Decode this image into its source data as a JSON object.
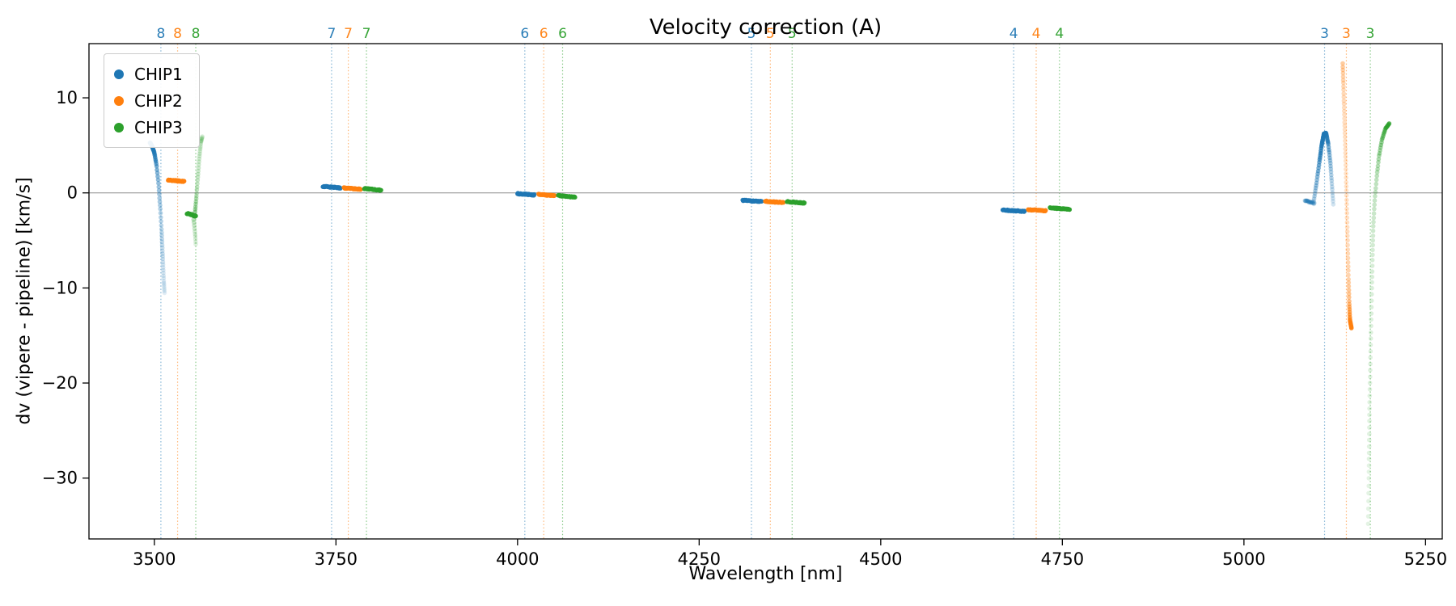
{
  "chart_data": {
    "type": "scatter",
    "title": "Velocity correction (A)",
    "xlabel": "Wavelength [nm]",
    "ylabel": "dv (vipere - pipeline) [km/s]",
    "xlim": [
      3410,
      5273
    ],
    "ylim": [
      -36.4,
      15.7
    ],
    "xticks": [
      3500,
      3750,
      4000,
      4250,
      4500,
      4750,
      5000,
      5250
    ],
    "xtick_labels": [
      "3500",
      "3750",
      "4000",
      "4250",
      "4500",
      "4750",
      "5000",
      "5250"
    ],
    "yticks": [
      10,
      0,
      -10,
      -20,
      -30
    ],
    "ytick_labels": [
      "10",
      "0",
      "−10",
      "−20",
      "−30"
    ],
    "zero_line": 0,
    "grid": false,
    "legend_position": "upper-left",
    "colors": {
      "CHIP1": "#1f77b4",
      "CHIP2": "#ff7f0e",
      "CHIP3": "#2ca02c"
    },
    "legend": [
      {
        "label": "CHIP1",
        "color": "#1f77b4"
      },
      {
        "label": "CHIP2",
        "color": "#ff7f0e"
      },
      {
        "label": "CHIP3",
        "color": "#2ca02c"
      }
    ],
    "order_lines": [
      {
        "order": "8",
        "chip": "CHIP1",
        "wavelength": 3509
      },
      {
        "order": "8",
        "chip": "CHIP2",
        "wavelength": 3532
      },
      {
        "order": "8",
        "chip": "CHIP3",
        "wavelength": 3557
      },
      {
        "order": "7",
        "chip": "CHIP1",
        "wavelength": 3744
      },
      {
        "order": "7",
        "chip": "CHIP2",
        "wavelength": 3767
      },
      {
        "order": "7",
        "chip": "CHIP3",
        "wavelength": 3792
      },
      {
        "order": "6",
        "chip": "CHIP1",
        "wavelength": 4010
      },
      {
        "order": "6",
        "chip": "CHIP2",
        "wavelength": 4036
      },
      {
        "order": "6",
        "chip": "CHIP3",
        "wavelength": 4062
      },
      {
        "order": "5",
        "chip": "CHIP1",
        "wavelength": 4322
      },
      {
        "order": "5",
        "chip": "CHIP2",
        "wavelength": 4348
      },
      {
        "order": "5",
        "chip": "CHIP3",
        "wavelength": 4378
      },
      {
        "order": "4",
        "chip": "CHIP1",
        "wavelength": 4683
      },
      {
        "order": "4",
        "chip": "CHIP2",
        "wavelength": 4714
      },
      {
        "order": "4",
        "chip": "CHIP3",
        "wavelength": 4746
      },
      {
        "order": "3",
        "chip": "CHIP1",
        "wavelength": 5111
      },
      {
        "order": "3",
        "chip": "CHIP2",
        "wavelength": 5141
      },
      {
        "order": "3",
        "chip": "CHIP3",
        "wavelength": 5174
      }
    ],
    "series": [
      {
        "chip": "CHIP1",
        "order": "8",
        "kind": "curve",
        "n": 60,
        "size": 2.8,
        "path": [
          [
            3494,
            5.3
          ],
          [
            3497,
            4.9
          ],
          [
            3500,
            4.2
          ],
          [
            3503,
            2.9
          ],
          [
            3506,
            0.8
          ],
          [
            3508,
            -1.5
          ],
          [
            3510,
            -4.0
          ],
          [
            3511,
            -5.9
          ],
          [
            3512,
            -7.6
          ],
          [
            3513,
            -9.3
          ],
          [
            3514,
            -10.5
          ]
        ],
        "alphas": [
          0.95,
          0.9,
          0.8,
          0.6,
          0.45,
          0.35,
          0.3,
          0.25,
          0.2,
          0.16,
          0.13
        ]
      },
      {
        "chip": "CHIP2",
        "order": "8",
        "kind": "segment",
        "n": 42,
        "size": 2.8,
        "x1": 3519,
        "x2": 3541,
        "y1": 1.35,
        "y2": 1.2,
        "alpha1": 0.95,
        "alpha2": 0.95,
        "jitter": 0.1
      },
      {
        "chip": "CHIP3",
        "order": "8",
        "kind": "segment",
        "n": 30,
        "size": 2.8,
        "x1": 3545,
        "x2": 3557,
        "y1": -2.15,
        "y2": -2.45,
        "alpha1": 0.9,
        "alpha2": 0.9,
        "jitter": 0.12
      },
      {
        "chip": "CHIP3",
        "order": "8",
        "kind": "curve",
        "n": 32,
        "size": 2.8,
        "path": [
          [
            3556,
            -2.0
          ],
          [
            3558,
            -0.3
          ],
          [
            3560,
            1.8
          ],
          [
            3562,
            3.8
          ],
          [
            3564,
            5.3
          ],
          [
            3566,
            5.9
          ]
        ],
        "alphas": [
          0.45,
          0.3,
          0.25,
          0.22,
          0.2,
          0.18
        ]
      },
      {
        "chip": "CHIP3",
        "order": "8",
        "kind": "curve",
        "n": 10,
        "size": 2.8,
        "path": [
          [
            3554,
            -2.8
          ],
          [
            3556,
            -4.2
          ],
          [
            3557,
            -5.4
          ]
        ],
        "alphas": [
          0.3,
          0.2,
          0.14
        ]
      },
      {
        "chip": "CHIP1",
        "order": "7",
        "kind": "segment",
        "n": 44,
        "size": 2.8,
        "x1": 3732,
        "x2": 3756,
        "y1": 0.68,
        "y2": 0.52,
        "alpha1": 0.9,
        "alpha2": 0.9,
        "jitter": 0.1
      },
      {
        "chip": "CHIP2",
        "order": "7",
        "kind": "segment",
        "n": 42,
        "size": 2.8,
        "x1": 3761,
        "x2": 3784,
        "y1": 0.52,
        "y2": 0.38,
        "alpha1": 0.9,
        "alpha2": 0.9,
        "jitter": 0.1
      },
      {
        "chip": "CHIP3",
        "order": "7",
        "kind": "segment",
        "n": 42,
        "size": 2.8,
        "x1": 3789,
        "x2": 3812,
        "y1": 0.46,
        "y2": 0.28,
        "alpha1": 0.85,
        "alpha2": 0.95,
        "jitter": 0.1
      },
      {
        "chip": "CHIP1",
        "order": "6",
        "kind": "segment",
        "n": 42,
        "size": 2.8,
        "x1": 4000,
        "x2": 4023,
        "y1": -0.08,
        "y2": -0.22,
        "alpha1": 0.9,
        "alpha2": 0.9,
        "jitter": 0.1
      },
      {
        "chip": "CHIP2",
        "order": "6",
        "kind": "segment",
        "n": 40,
        "size": 2.8,
        "x1": 4029,
        "x2": 4051,
        "y1": -0.15,
        "y2": -0.3,
        "alpha1": 0.9,
        "alpha2": 0.9,
        "jitter": 0.1
      },
      {
        "chip": "CHIP3",
        "order": "6",
        "kind": "segment",
        "n": 40,
        "size": 2.8,
        "x1": 4056,
        "x2": 4079,
        "y1": -0.28,
        "y2": -0.46,
        "alpha1": 0.85,
        "alpha2": 0.95,
        "jitter": 0.1
      },
      {
        "chip": "CHIP1",
        "order": "5",
        "kind": "segment",
        "n": 46,
        "size": 2.8,
        "x1": 4310,
        "x2": 4336,
        "y1": -0.78,
        "y2": -0.92,
        "alpha1": 0.9,
        "alpha2": 0.9,
        "jitter": 0.1
      },
      {
        "chip": "CHIP2",
        "order": "5",
        "kind": "segment",
        "n": 44,
        "size": 2.8,
        "x1": 4341,
        "x2": 4366,
        "y1": -0.88,
        "y2": -1.02,
        "alpha1": 0.95,
        "alpha2": 0.95,
        "jitter": 0.1
      },
      {
        "chip": "CHIP3",
        "order": "5",
        "kind": "segment",
        "n": 42,
        "size": 2.8,
        "x1": 4371,
        "x2": 4395,
        "y1": -0.92,
        "y2": -1.06,
        "alpha1": 0.9,
        "alpha2": 0.9,
        "jitter": 0.1
      },
      {
        "chip": "CHIP1",
        "order": "4",
        "kind": "segment",
        "n": 52,
        "size": 2.8,
        "x1": 4668,
        "x2": 4698,
        "y1": -1.8,
        "y2": -1.94,
        "alpha1": 0.95,
        "alpha2": 0.95,
        "jitter": 0.1
      },
      {
        "chip": "CHIP2",
        "order": "4",
        "kind": "segment",
        "n": 44,
        "size": 2.8,
        "x1": 4703,
        "x2": 4727,
        "y1": -1.76,
        "y2": -1.88,
        "alpha1": 0.9,
        "alpha2": 0.9,
        "jitter": 0.1
      },
      {
        "chip": "CHIP3",
        "order": "4",
        "kind": "segment",
        "n": 46,
        "size": 2.8,
        "x1": 4733,
        "x2": 4760,
        "y1": -1.58,
        "y2": -1.72,
        "alpha1": 0.9,
        "alpha2": 0.9,
        "jitter": 0.1
      },
      {
        "chip": "CHIP1",
        "order": "3",
        "kind": "segment",
        "n": 20,
        "size": 2.8,
        "x1": 5084,
        "x2": 5097,
        "y1": -0.85,
        "y2": -1.1,
        "alpha1": 0.3,
        "alpha2": 0.25,
        "jitter": 0.15
      },
      {
        "chip": "CHIP1",
        "order": "3",
        "kind": "curve",
        "n": 65,
        "size": 2.8,
        "path": [
          [
            5096,
            -0.9
          ],
          [
            5100,
            1.1
          ],
          [
            5104,
            3.3
          ],
          [
            5107,
            5.0
          ],
          [
            5110,
            6.2
          ],
          [
            5113,
            6.3
          ],
          [
            5116,
            5.2
          ],
          [
            5119,
            3.2
          ],
          [
            5121,
            1.0
          ],
          [
            5123,
            -1.2
          ]
        ],
        "alphas": [
          0.3,
          0.45,
          0.65,
          0.85,
          0.95,
          0.85,
          0.6,
          0.4,
          0.28,
          0.2
        ]
      },
      {
        "chip": "CHIP2",
        "order": "3",
        "kind": "curve",
        "n": 75,
        "size": 2.8,
        "path": [
          [
            5136,
            13.6
          ],
          [
            5137,
            11.3
          ],
          [
            5138,
            8.8
          ],
          [
            5139,
            6.2
          ],
          [
            5140,
            3.4
          ],
          [
            5141,
            0.4
          ],
          [
            5142,
            -2.8
          ],
          [
            5143,
            -6.0
          ],
          [
            5144,
            -9.0
          ],
          [
            5145,
            -11.6
          ],
          [
            5146,
            -13.4
          ],
          [
            5148,
            -14.2
          ]
        ],
        "alphas": [
          0.4,
          0.3,
          0.26,
          0.24,
          0.22,
          0.22,
          0.24,
          0.28,
          0.34,
          0.5,
          0.8,
          0.95
        ]
      },
      {
        "chip": "CHIP3",
        "order": "3",
        "kind": "curve",
        "n": 85,
        "size": 2.8,
        "path": [
          [
            5171,
            -34.8
          ],
          [
            5172,
            -30
          ],
          [
            5172.5,
            -26
          ],
          [
            5173,
            -22
          ],
          [
            5174,
            -18
          ],
          [
            5175,
            -14
          ],
          [
            5176,
            -10
          ],
          [
            5177,
            -6.5
          ],
          [
            5178,
            -3.5
          ],
          [
            5180,
            -0.8
          ],
          [
            5183,
            1.8
          ],
          [
            5186,
            3.9
          ],
          [
            5190,
            5.6
          ],
          [
            5195,
            6.8
          ],
          [
            5200,
            7.3
          ]
        ],
        "alphas": [
          0.13,
          0.13,
          0.14,
          0.14,
          0.15,
          0.16,
          0.18,
          0.2,
          0.23,
          0.27,
          0.32,
          0.4,
          0.5,
          0.65,
          0.75
        ]
      }
    ]
  }
}
